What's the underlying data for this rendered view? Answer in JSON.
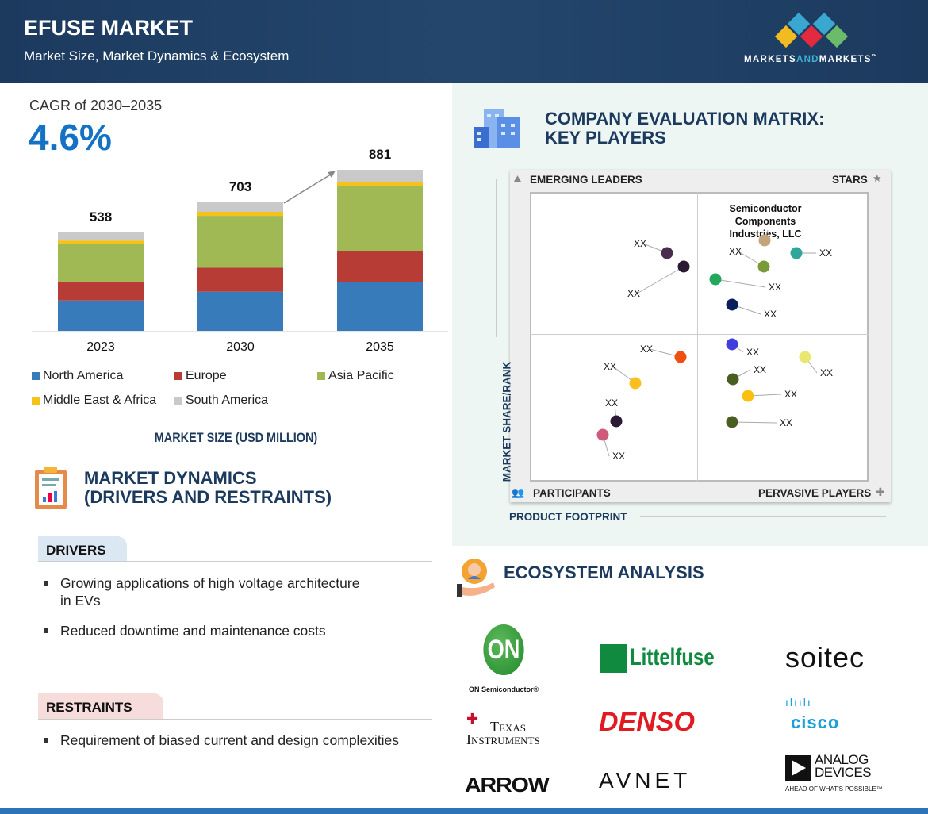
{
  "header": {
    "title": "EFUSE MARKET",
    "subtitle": "Market Size, Market Dynamics & Ecosystem",
    "brand": {
      "part1": "MARKETS",
      "part2": "AND",
      "part3": "MARKETS",
      "tm": "™"
    }
  },
  "cagr": {
    "label": "CAGR of 2030–2035",
    "value": "4.6%"
  },
  "chart_data": {
    "type": "bar",
    "stacked": true,
    "categories": [
      "2023",
      "2030",
      "2035"
    ],
    "totals": [
      "538",
      "703",
      "881"
    ],
    "series": [
      {
        "name": "North America",
        "color": "#377bbb",
        "values": [
          166,
          214,
          266
        ]
      },
      {
        "name": "Europe",
        "color": "#b73c35",
        "values": [
          100,
          131,
          170
        ]
      },
      {
        "name": "Asia Pacific",
        "color": "#a0b954",
        "values": [
          211,
          284,
          358
        ]
      },
      {
        "name": "Middle East & Africa",
        "color": "#f6c219",
        "values": [
          17,
          22,
          22
        ]
      },
      {
        "name": "South America",
        "color": "#c9c9c9",
        "values": [
          44,
          52,
          65
        ]
      }
    ],
    "xlabel": "MARKET SIZE (USD MILLION)",
    "grid": false,
    "legend": "bottom"
  },
  "dynamics": {
    "title1": "MARKET DYNAMICS",
    "title2": "(DRIVERS AND RESTRAINTS)",
    "drivers_label": "DRIVERS",
    "drivers": [
      "Growing applications of high voltage architecture",
      "in EVs",
      "Reduced downtime and maintenance costs"
    ],
    "restraints_label": "RESTRAINTS",
    "restraints": [
      "Requirement of biased current and design complexities"
    ]
  },
  "matrix": {
    "title1": "COMPANY EVALUATION MATRIX:",
    "title2": "KEY PLAYERS",
    "quadrants": {
      "tl": "EMERGING LEADERS",
      "tr": "STARS",
      "bl": "PARTICIPANTS",
      "br": "PERVASIVE PLAYERS"
    },
    "y_axis": "MARKET SHARE/RANK",
    "x_axis": "PRODUCT FOOTPRINT",
    "highlight_1": "Semiconductor Components",
    "highlight_2": "Industries, LLC",
    "players": [
      {
        "label": "XX",
        "color": "#4a2c4e"
      },
      {
        "label": "XX",
        "color": "#2b1a33"
      },
      {
        "label": "",
        "color": "#c4a57a"
      },
      {
        "label": "XX",
        "color": "#7a9a3a"
      },
      {
        "label": "XX",
        "color": "#2fa69a"
      },
      {
        "label": "XX",
        "color": "#22a85a"
      },
      {
        "label": "XX",
        "color": "#0a1f5c"
      },
      {
        "label": "XX",
        "color": "#3f3fe0"
      },
      {
        "label": "XX",
        "color": "#e8e870"
      },
      {
        "label": "XX",
        "color": "#4a5e22"
      },
      {
        "label": "XX",
        "color": "#fbbf0f"
      },
      {
        "label": "XX",
        "color": "#4a5e22"
      },
      {
        "label": "XX",
        "color": "#f0500f"
      },
      {
        "label": "XX",
        "color": "#fbbf20"
      },
      {
        "label": "XX",
        "color": "#2b1a33"
      },
      {
        "label": "XX",
        "color": "#d05a7a"
      }
    ]
  },
  "ecosystem": {
    "title": "ECOSYSTEM ANALYSIS",
    "logos": {
      "on": "ON",
      "on_sub": "ON Semiconductor®",
      "littelfuse": "Littelfuse",
      "soitec": "soitec",
      "ti1": "Texas",
      "ti2": "Instruments",
      "denso": "DENSO",
      "cisco": "cisco",
      "arrow": "ARROW",
      "avnet": "AVNET",
      "adi1": "ANALOG",
      "adi2": "DEVICES",
      "adi3": "AHEAD OF WHAT'S POSSIBLE™"
    }
  }
}
